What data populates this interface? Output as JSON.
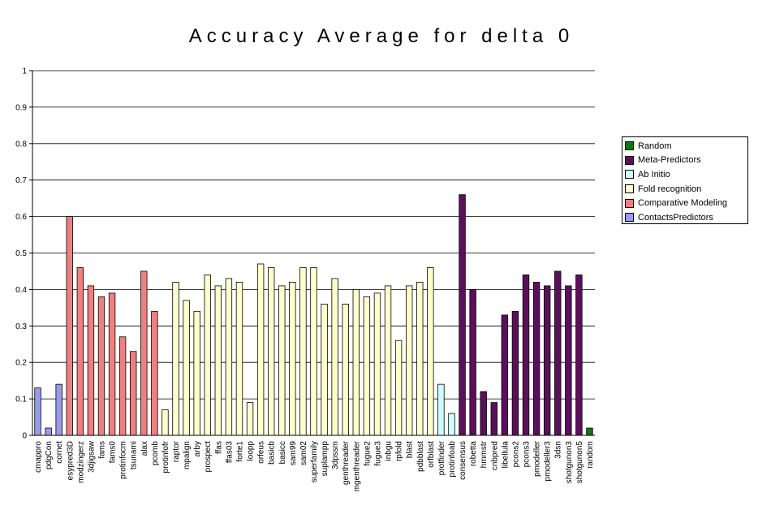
{
  "chart_data": {
    "type": "bar",
    "title": "Accuracy Average for delta 0",
    "xlabel": "",
    "ylabel": "",
    "ylim": [
      0,
      1
    ],
    "yticks": [
      "0",
      "0.1",
      "0.2",
      "0.3",
      "0.4",
      "0.5",
      "0.6",
      "0.7",
      "0.8",
      "0.9",
      "1"
    ],
    "grid": true,
    "legend_position": "right",
    "series_colors": {
      "Random": "#117711",
      "Meta-Predictors": "#5c0f5c",
      "Ab Initio": "#ccffff",
      "Fold recognition": "#ffffcc",
      "Comparative Modeling": "#f08080",
      "ContactsPredictors": "#9999ee"
    },
    "legend": [
      "Random",
      "Meta-Predictors",
      "Ab Initio",
      "Fold recognition",
      "Comparative Modeling",
      "ContactsPredictors"
    ],
    "categories": [
      "cmappro",
      "pdgCon",
      "cornet",
      "esypred3D",
      "modzingerz",
      "3djigsaw",
      "fams",
      "fams0",
      "protinfocm",
      "tsunami",
      "alax",
      "pcomb",
      "protinfofr",
      "raptor",
      "mpalign",
      "arby",
      "prospect",
      "ffas",
      "ffas03",
      "forte1",
      "loopp",
      "orfeus",
      "basicb",
      "basicc",
      "sam99",
      "sam02",
      "superfamily",
      "suplampp",
      "3dpssm",
      "genthreader",
      "mgenthreader",
      "fugue2",
      "fugue3",
      "inbgu",
      "rpfold",
      "blast",
      "pdbblast",
      "orfblast",
      "protfinder",
      "protinfoab",
      "consensus",
      "robetta",
      "hmmstr",
      "cnbpred",
      "libellula",
      "pcons2",
      "pcons3",
      "pmodeller",
      "pmodeller3",
      "3dsn",
      "shotgunon3",
      "shotgunon5",
      "random"
    ],
    "values": [
      0.13,
      0.02,
      0.14,
      0.6,
      0.46,
      0.41,
      0.38,
      0.39,
      0.27,
      0.23,
      0.45,
      0.34,
      0.07,
      0.42,
      0.37,
      0.34,
      0.44,
      0.41,
      0.43,
      0.42,
      0.09,
      0.47,
      0.46,
      0.41,
      0.42,
      0.46,
      0.46,
      0.36,
      0.43,
      0.36,
      0.4,
      0.38,
      0.39,
      0.41,
      0.26,
      0.41,
      0.42,
      0.46,
      0.14,
      0.06,
      0.66,
      0.4,
      0.12,
      0.09,
      0.33,
      0.34,
      0.44,
      0.42,
      0.41,
      0.45,
      0.41,
      0.44,
      0.02
    ],
    "groups": [
      "ContactsPredictors",
      "ContactsPredictors",
      "ContactsPredictors",
      "Comparative Modeling",
      "Comparative Modeling",
      "Comparative Modeling",
      "Comparative Modeling",
      "Comparative Modeling",
      "Comparative Modeling",
      "Comparative Modeling",
      "Comparative Modeling",
      "Comparative Modeling",
      "Fold recognition",
      "Fold recognition",
      "Fold recognition",
      "Fold recognition",
      "Fold recognition",
      "Fold recognition",
      "Fold recognition",
      "Fold recognition",
      "Fold recognition",
      "Fold recognition",
      "Fold recognition",
      "Fold recognition",
      "Fold recognition",
      "Fold recognition",
      "Fold recognition",
      "Fold recognition",
      "Fold recognition",
      "Fold recognition",
      "Fold recognition",
      "Fold recognition",
      "Fold recognition",
      "Fold recognition",
      "Fold recognition",
      "Fold recognition",
      "Fold recognition",
      "Fold recognition",
      "Ab Initio",
      "Ab Initio",
      "Meta-Predictors",
      "Meta-Predictors",
      "Meta-Predictors",
      "Meta-Predictors",
      "Meta-Predictors",
      "Meta-Predictors",
      "Meta-Predictors",
      "Meta-Predictors",
      "Meta-Predictors",
      "Meta-Predictors",
      "Meta-Predictors",
      "Meta-Predictors",
      "Random"
    ]
  }
}
